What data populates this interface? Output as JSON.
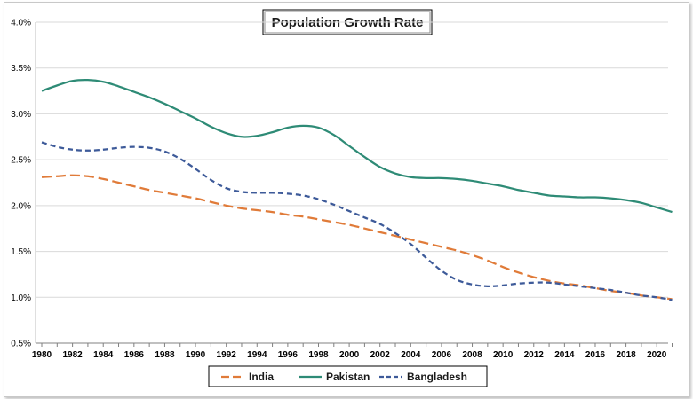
{
  "chart_data": {
    "type": "line",
    "title": "Population Growth Rate",
    "xlabel": "",
    "ylabel": "",
    "ylim": [
      0.5,
      4.0
    ],
    "xlim": [
      1980,
      2021
    ],
    "y_ticks": [
      "0.5%",
      "1.0%",
      "1.5%",
      "2.0%",
      "2.5%",
      "3.0%",
      "3.5%",
      "4.0%"
    ],
    "y_tick_values": [
      0.5,
      1.0,
      1.5,
      2.0,
      2.5,
      3.0,
      3.5,
      4.0
    ],
    "x_ticks": [
      "1980",
      "1982",
      "1984",
      "1986",
      "1988",
      "1990",
      "1992",
      "1994",
      "1996",
      "1998",
      "2000",
      "2002",
      "2004",
      "2006",
      "2008",
      "2010",
      "2012",
      "2014",
      "2016",
      "2018",
      "2020"
    ],
    "x_tick_values": [
      1980,
      1982,
      1984,
      1986,
      1988,
      1990,
      1992,
      1994,
      1996,
      1998,
      2000,
      2002,
      2004,
      2006,
      2008,
      2010,
      2012,
      2014,
      2016,
      2018,
      2020
    ],
    "grid": "horizontal",
    "legend_position": "bottom",
    "x": [
      1980,
      1981,
      1982,
      1983,
      1984,
      1985,
      1986,
      1987,
      1988,
      1989,
      1990,
      1991,
      1992,
      1993,
      1994,
      1995,
      1996,
      1997,
      1998,
      1999,
      2000,
      2001,
      2002,
      2003,
      2004,
      2005,
      2006,
      2007,
      2008,
      2009,
      2010,
      2011,
      2012,
      2013,
      2014,
      2015,
      2016,
      2017,
      2018,
      2019,
      2020,
      2021
    ],
    "series": [
      {
        "name": "India",
        "color": "#E07B39",
        "style": "long-dash",
        "values": [
          2.31,
          2.32,
          2.33,
          2.32,
          2.29,
          2.25,
          2.21,
          2.17,
          2.14,
          2.11,
          2.08,
          2.04,
          2.0,
          1.97,
          1.95,
          1.93,
          1.9,
          1.88,
          1.85,
          1.82,
          1.79,
          1.75,
          1.71,
          1.67,
          1.63,
          1.59,
          1.55,
          1.51,
          1.46,
          1.4,
          1.33,
          1.27,
          1.22,
          1.18,
          1.15,
          1.13,
          1.1,
          1.07,
          1.05,
          1.02,
          1.0,
          0.98
        ]
      },
      {
        "name": "Pakistan",
        "color": "#2E8B76",
        "style": "solid",
        "values": [
          3.25,
          3.31,
          3.36,
          3.37,
          3.35,
          3.3,
          3.24,
          3.18,
          3.11,
          3.03,
          2.95,
          2.86,
          2.79,
          2.75,
          2.76,
          2.8,
          2.85,
          2.87,
          2.85,
          2.77,
          2.65,
          2.53,
          2.42,
          2.35,
          2.31,
          2.3,
          2.3,
          2.29,
          2.27,
          2.24,
          2.21,
          2.17,
          2.14,
          2.11,
          2.1,
          2.09,
          2.09,
          2.08,
          2.06,
          2.03,
          1.98,
          1.93
        ]
      },
      {
        "name": "Bangladesh",
        "color": "#3D5A99",
        "style": "short-dash",
        "values": [
          2.69,
          2.64,
          2.61,
          2.6,
          2.61,
          2.63,
          2.64,
          2.63,
          2.59,
          2.51,
          2.4,
          2.28,
          2.19,
          2.15,
          2.14,
          2.14,
          2.13,
          2.11,
          2.07,
          2.01,
          1.94,
          1.87,
          1.8,
          1.7,
          1.58,
          1.43,
          1.29,
          1.19,
          1.14,
          1.12,
          1.13,
          1.15,
          1.16,
          1.16,
          1.14,
          1.12,
          1.1,
          1.08,
          1.05,
          1.02,
          1.0,
          0.97
        ]
      }
    ]
  }
}
